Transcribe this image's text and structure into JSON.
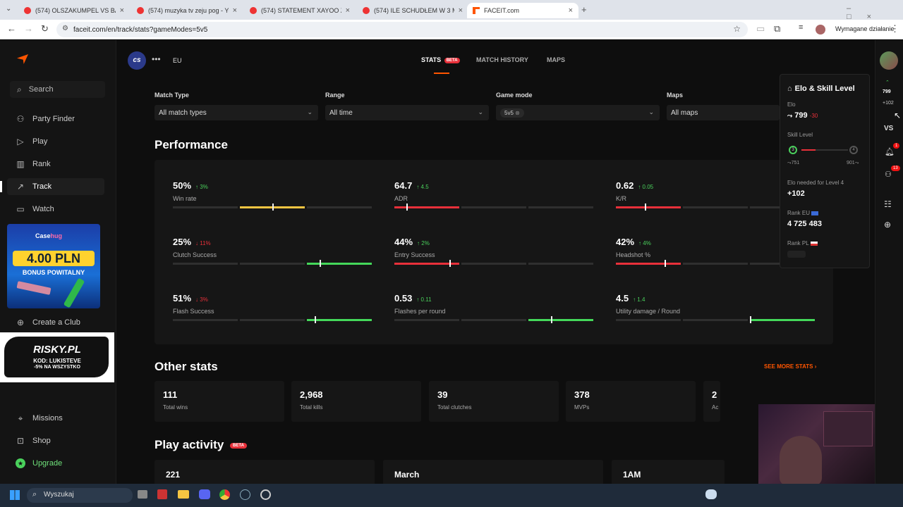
{
  "browser": {
    "tabs": [
      {
        "title": "(574) OLSZAKUMPEL VS BARY",
        "kind": "youtube"
      },
      {
        "title": "(574) muzyka tv zeju pog - You",
        "kind": "youtube"
      },
      {
        "title": "(574) STATEMENT XAYOO Zeju",
        "kind": "youtube"
      },
      {
        "title": "(574) ILE SCHUDŁEM W 3 MIES",
        "kind": "youtube"
      },
      {
        "title": "FACEIT.com",
        "kind": "faceit"
      }
    ],
    "url": "faceit.com/en/track/stats?gameModes=5v5",
    "profile_action": "Wymagane działanie"
  },
  "sidebar": {
    "search": "Search",
    "items": [
      {
        "label": "Party Finder",
        "icon": "party-icon"
      },
      {
        "label": "Play",
        "icon": "play-icon"
      },
      {
        "label": "Rank",
        "icon": "rank-icon"
      },
      {
        "label": "Track",
        "icon": "track-icon"
      },
      {
        "label": "Watch",
        "icon": "watch-icon"
      }
    ],
    "ad1": {
      "brand": "Case",
      "brand2": "hug",
      "amount": "4.00 PLN",
      "text": "BONUS POWITALNY"
    },
    "create_club": "Create a Club",
    "ad2": {
      "brand": "RISKY.PL",
      "code": "KOD: LUKISTEVE",
      "promo": "-5% NA WSZYSTKO"
    },
    "bottom_items": [
      {
        "label": "Missions",
        "icon": "missions-icon"
      },
      {
        "label": "Shop",
        "icon": "shop-icon"
      },
      {
        "label": "Upgrade",
        "icon": "upgrade-icon"
      }
    ]
  },
  "topnav": {
    "game": "cs",
    "region": "EU",
    "tabs": [
      "STATS",
      "MATCH HISTORY",
      "MAPS"
    ],
    "stats_badge": "BETA"
  },
  "filters": [
    {
      "label": "Match Type",
      "value": "All match types"
    },
    {
      "label": "Range",
      "value": "All time"
    },
    {
      "label": "Game mode",
      "value": "5v5"
    },
    {
      "label": "Maps",
      "value": "All maps"
    }
  ],
  "performance": {
    "title": "Performance",
    "stats": [
      {
        "value": "50%",
        "change": "3%",
        "dir": "up",
        "label": "Win rate",
        "color": "#f5c542"
      },
      {
        "value": "64.7",
        "change": "4.5",
        "dir": "up",
        "label": "ADR",
        "color": "#e8303a"
      },
      {
        "value": "0.62",
        "change": "0.05",
        "dir": "up",
        "label": "K/R",
        "color": "#e8303a"
      },
      {
        "value": "25%",
        "change": "11%",
        "dir": "down",
        "label": "Clutch Success",
        "color": "#44d85a"
      },
      {
        "value": "44%",
        "change": "2%",
        "dir": "up",
        "label": "Entry Success",
        "color": "#e8303a"
      },
      {
        "value": "42%",
        "change": "4%",
        "dir": "up",
        "label": "Headshot %",
        "color": "#e8303a"
      },
      {
        "value": "51%",
        "change": "3%",
        "dir": "down",
        "label": "Flash Success",
        "color": "#44d85a"
      },
      {
        "value": "0.53",
        "change": "0.11",
        "dir": "up",
        "label": "Flashes per round",
        "color": "#44d85a"
      },
      {
        "value": "4.5",
        "change": "1.4",
        "dir": "up",
        "label": "Utility damage / Round",
        "color": "#44d85a"
      }
    ]
  },
  "other_stats": {
    "title": "Other stats",
    "see_more": "SEE MORE STATS",
    "cards": [
      {
        "value": "111",
        "label": "Total wins"
      },
      {
        "value": "2,968",
        "label": "Total kills"
      },
      {
        "value": "39",
        "label": "Total clutches"
      },
      {
        "value": "378",
        "label": "MVPs"
      },
      {
        "value": "2",
        "label": "Ac"
      }
    ]
  },
  "play_activity": {
    "title": "Play activity",
    "badge": "BETA",
    "cards": [
      "221",
      "March",
      "1AM"
    ]
  },
  "elo_panel": {
    "title": "Elo & Skill Level",
    "elo_label": "Elo",
    "elo": "799",
    "elo_change": "-30",
    "skill_label": "Skill Level",
    "level_from": "3",
    "level_to": "4",
    "range_min": "751",
    "range_max": "901",
    "needed_label": "Elo needed for Level 4",
    "needed": "+102",
    "rank_eu_label": "Rank EU",
    "rank_eu": "4 725 483",
    "rank_pl_label": "Rank PL"
  },
  "right_rail": {
    "elo": "799",
    "elo_delta": "+102",
    "vs": "VS",
    "notif_count": "1",
    "friends_count": "13"
  },
  "taskbar": {
    "search": "Wyszukaj"
  }
}
